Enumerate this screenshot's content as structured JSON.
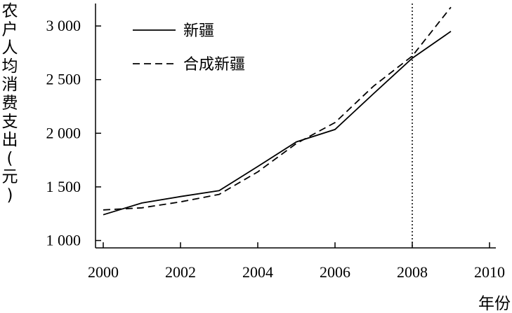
{
  "chart_data": {
    "type": "line",
    "xlabel": "年份",
    "ylabel": [
      "农",
      "户",
      "人",
      "均",
      "消",
      "费",
      "支",
      "出",
      "(",
      "元",
      ")"
    ],
    "x": [
      2000,
      2001,
      2002,
      2003,
      2004,
      2005,
      2006,
      2007,
      2008,
      2009
    ],
    "xlim": [
      2000,
      2010
    ],
    "ylim": [
      1000,
      3200
    ],
    "xticks": [
      "2000",
      "2002",
      "2004",
      "2006",
      "2008",
      "2010"
    ],
    "yticks": [
      "1 000",
      "1 500",
      "2 000",
      "2 500",
      "3 000"
    ],
    "series": [
      {
        "name": "新疆",
        "style": "solid",
        "values": [
          1240,
          1350,
          1410,
          1465,
          1690,
          1920,
          2035,
          2370,
          2700,
          2950
        ]
      },
      {
        "name": "合成新疆",
        "style": "dashed",
        "values": [
          1285,
          1305,
          1360,
          1430,
          1640,
          1905,
          2100,
          2440,
          2720,
          3175
        ]
      }
    ],
    "reference_line_x": 2008,
    "legend": "top-left",
    "grid": false
  }
}
